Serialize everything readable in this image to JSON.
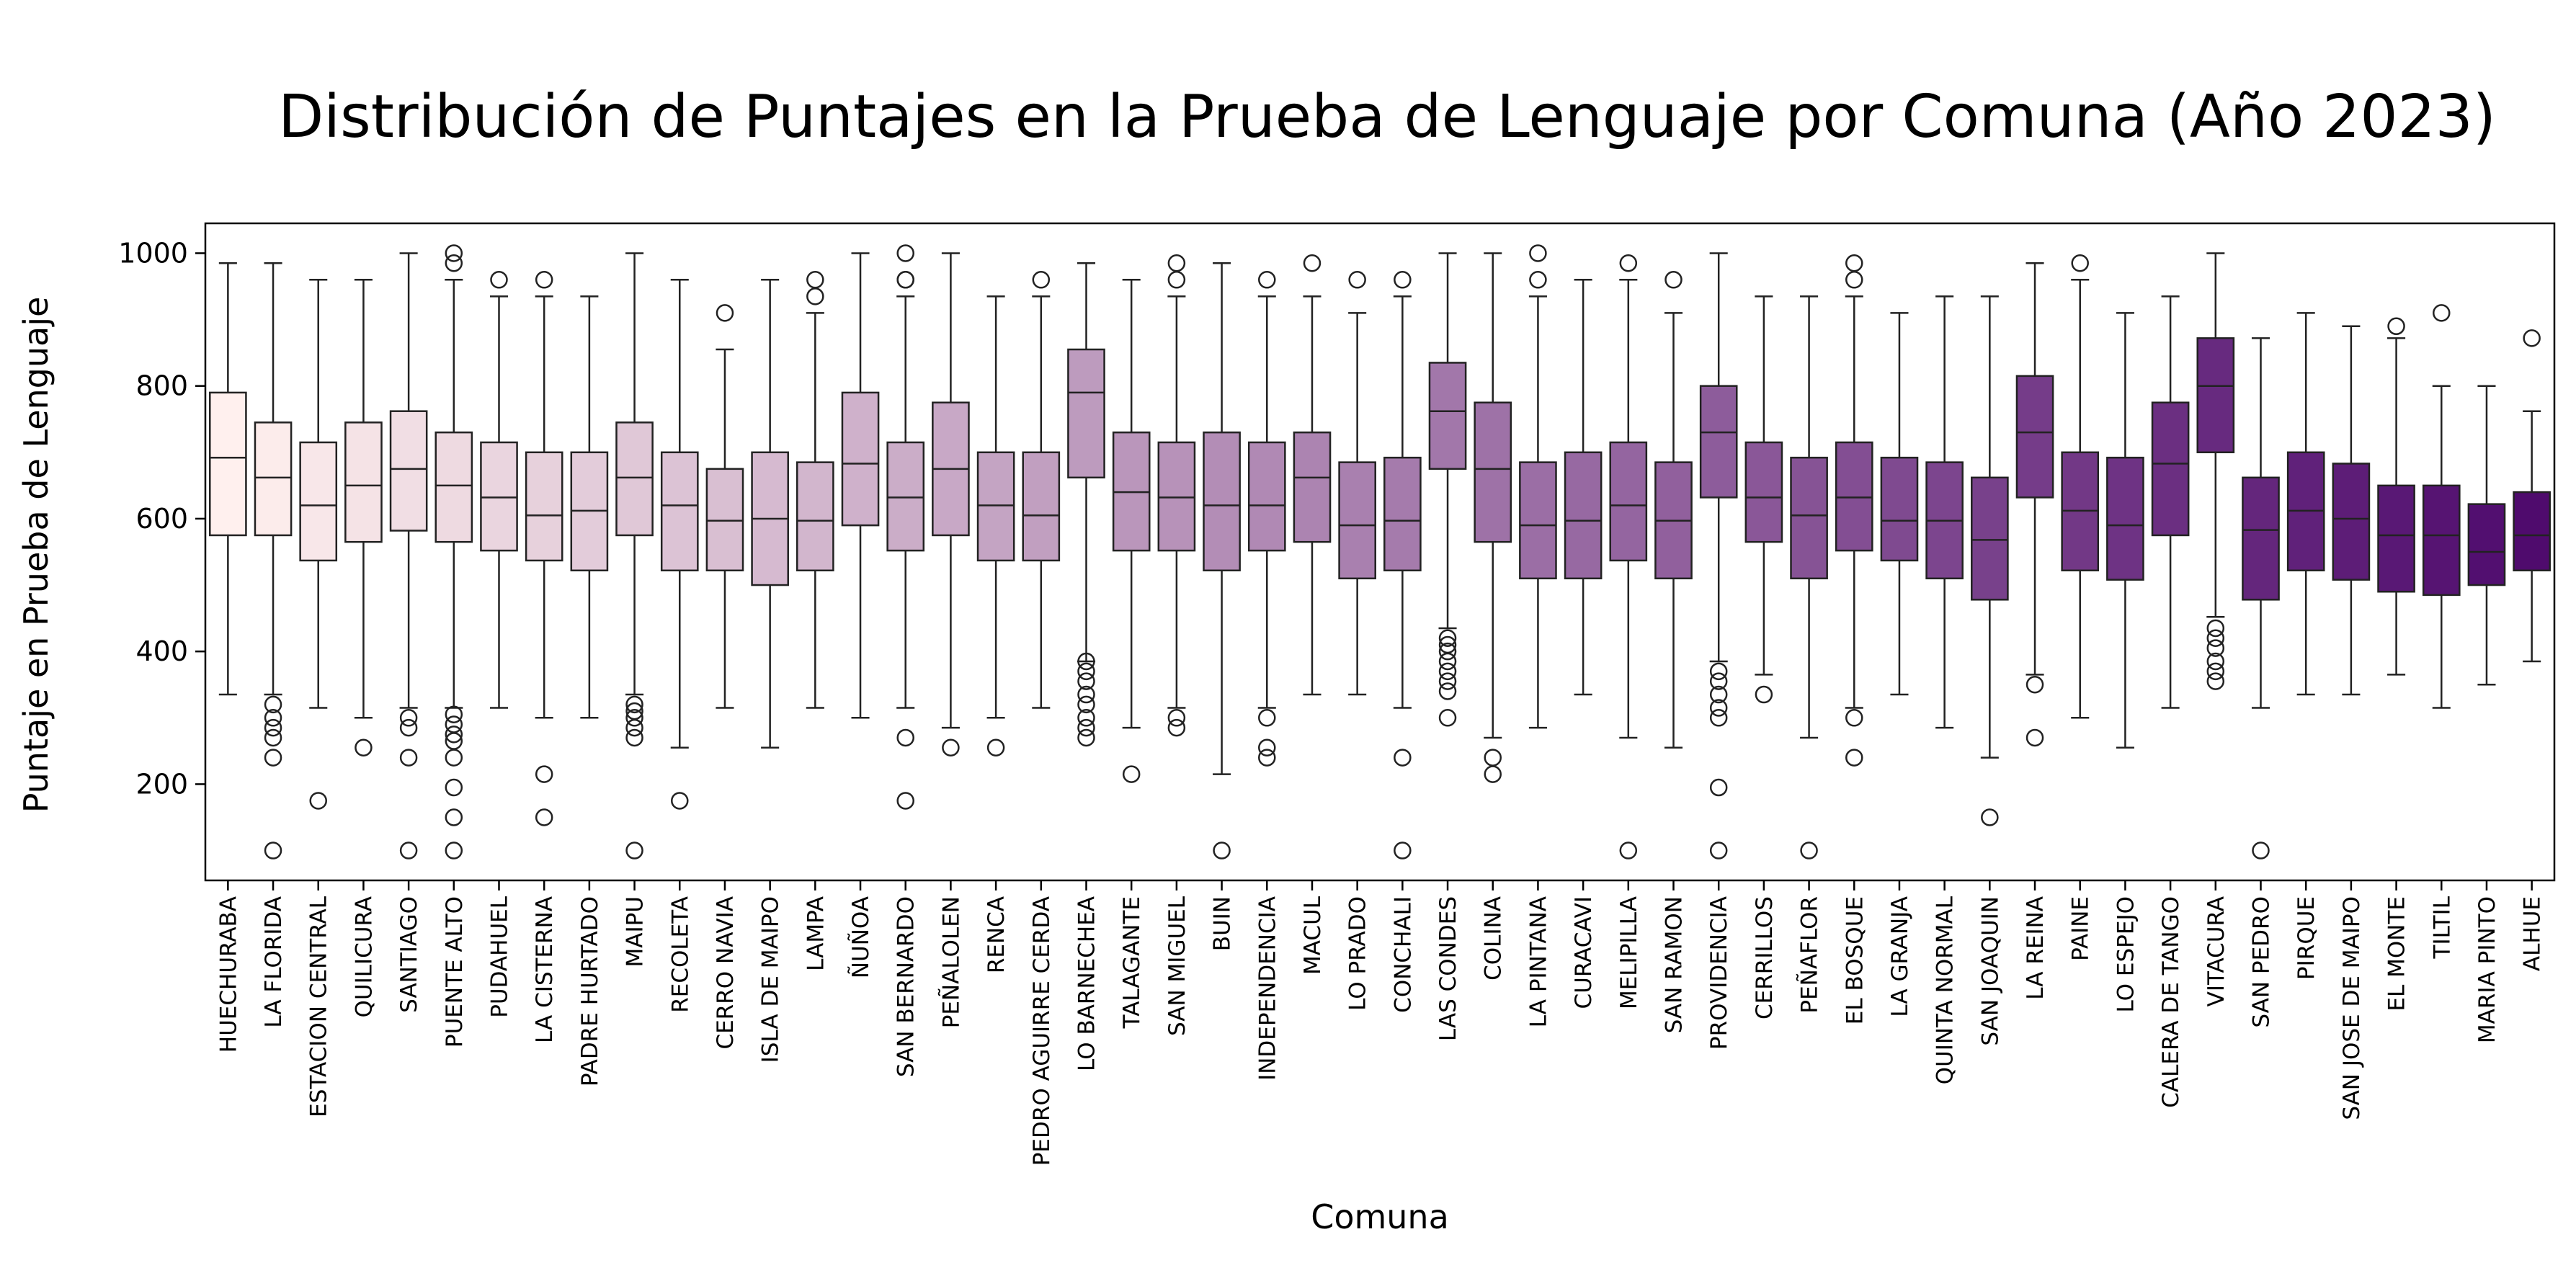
{
  "chart_data": {
    "type": "boxplot",
    "title": "Distribución de Puntajes en la Prueba de Lenguaje por Comuna (Año 2023)",
    "xlabel": "Comuna",
    "ylabel": "Puntaje en Prueba de Lenguaje",
    "ylim": [
      55,
      1045
    ],
    "yticks": [
      200,
      400,
      600,
      800,
      1000
    ],
    "grid": false,
    "legend": "none",
    "palette": "RdPu",
    "color_start": "#fff0ee",
    "color_end": "#4f0b6d",
    "categories": [
      "HUECHURABA",
      "LA FLORIDA",
      "ESTACION CENTRAL",
      "QUILICURA",
      "SANTIAGO",
      "PUENTE ALTO",
      "PUDAHUEL",
      "LA CISTERNA",
      "PADRE HURTADO",
      "MAIPU",
      "RECOLETA",
      "CERRO NAVIA",
      "ISLA DE MAIPO",
      "LAMPA",
      "ÑUÑOA",
      "SAN BERNARDO",
      "PEÑALOLEN",
      "RENCA",
      "PEDRO AGUIRRE CERDA",
      "LO BARNECHEA",
      "TALAGANTE",
      "SAN MIGUEL",
      "BUIN",
      "INDEPENDENCIA",
      "MACUL",
      "LO PRADO",
      "CONCHALI",
      "LAS CONDES",
      "COLINA",
      "LA PINTANA",
      "CURACAVI",
      "MELIPILLA",
      "SAN RAMON",
      "PROVIDENCIA",
      "CERRILLOS",
      "PEÑAFLOR",
      "EL BOSQUE",
      "LA GRANJA",
      "QUINTA NORMAL",
      "SAN JOAQUIN",
      "LA REINA",
      "PAINE",
      "LO ESPEJO",
      "CALERA DE TANGO",
      "VITACURA",
      "SAN PEDRO",
      "PIRQUE",
      "SAN JOSE DE MAIPO",
      "EL MONTE",
      "TILTIL",
      "MARIA PINTO",
      "ALHUE"
    ],
    "boxes": [
      {
        "whislo": 335,
        "q1": 575,
        "med": 692,
        "q3": 790,
        "whishi": 985,
        "fliers": []
      },
      {
        "whislo": 335,
        "q1": 575,
        "med": 662,
        "q3": 745,
        "whishi": 985,
        "fliers": [
          320,
          300,
          285,
          270,
          240,
          100
        ]
      },
      {
        "whislo": 315,
        "q1": 537,
        "med": 620,
        "q3": 715,
        "whishi": 960,
        "fliers": [
          175
        ]
      },
      {
        "whislo": 300,
        "q1": 565,
        "med": 650,
        "q3": 745,
        "whishi": 960,
        "fliers": [
          255
        ]
      },
      {
        "whislo": 315,
        "q1": 582,
        "med": 675,
        "q3": 762,
        "whishi": 1000,
        "fliers": [
          300,
          285,
          240,
          100
        ]
      },
      {
        "whislo": 315,
        "q1": 565,
        "med": 650,
        "q3": 730,
        "whishi": 960,
        "fliers": [
          1000,
          985,
          305,
          290,
          275,
          265,
          240,
          195,
          150,
          100
        ]
      },
      {
        "whislo": 315,
        "q1": 552,
        "med": 632,
        "q3": 715,
        "whishi": 935,
        "fliers": [
          960
        ]
      },
      {
        "whislo": 300,
        "q1": 537,
        "med": 605,
        "q3": 700,
        "whishi": 935,
        "fliers": [
          960,
          215,
          150
        ]
      },
      {
        "whislo": 300,
        "q1": 522,
        "med": 612,
        "q3": 700,
        "whishi": 935,
        "fliers": []
      },
      {
        "whislo": 335,
        "q1": 575,
        "med": 662,
        "q3": 745,
        "whishi": 1000,
        "fliers": [
          320,
          310,
          300,
          285,
          270,
          100
        ]
      },
      {
        "whislo": 255,
        "q1": 522,
        "med": 620,
        "q3": 700,
        "whishi": 960,
        "fliers": [
          175
        ]
      },
      {
        "whislo": 315,
        "q1": 522,
        "med": 597,
        "q3": 675,
        "whishi": 855,
        "fliers": [
          910
        ]
      },
      {
        "whislo": 255,
        "q1": 500,
        "med": 600,
        "q3": 700,
        "whishi": 960,
        "fliers": []
      },
      {
        "whislo": 315,
        "q1": 522,
        "med": 597,
        "q3": 685,
        "whishi": 910,
        "fliers": [
          960,
          935
        ]
      },
      {
        "whislo": 300,
        "q1": 590,
        "med": 683,
        "q3": 790,
        "whishi": 1000,
        "fliers": []
      },
      {
        "whislo": 315,
        "q1": 552,
        "med": 632,
        "q3": 715,
        "whishi": 935,
        "fliers": [
          1000,
          960,
          960,
          270,
          175
        ]
      },
      {
        "whislo": 285,
        "q1": 575,
        "med": 675,
        "q3": 775,
        "whishi": 1000,
        "fliers": [
          255
        ]
      },
      {
        "whislo": 300,
        "q1": 537,
        "med": 620,
        "q3": 700,
        "whishi": 935,
        "fliers": [
          255
        ]
      },
      {
        "whislo": 315,
        "q1": 537,
        "med": 605,
        "q3": 700,
        "whishi": 935,
        "fliers": [
          960
        ]
      },
      {
        "whislo": 385,
        "q1": 662,
        "med": 790,
        "q3": 855,
        "whishi": 985,
        "fliers": [
          385,
          370,
          355,
          335,
          320,
          300,
          285,
          270
        ]
      },
      {
        "whislo": 285,
        "q1": 552,
        "med": 640,
        "q3": 730,
        "whishi": 960,
        "fliers": [
          215
        ]
      },
      {
        "whislo": 315,
        "q1": 552,
        "med": 632,
        "q3": 715,
        "whishi": 935,
        "fliers": [
          985,
          960,
          300,
          285
        ]
      },
      {
        "whislo": 215,
        "q1": 522,
        "med": 620,
        "q3": 730,
        "whishi": 985,
        "fliers": [
          100
        ]
      },
      {
        "whislo": 315,
        "q1": 552,
        "med": 620,
        "q3": 715,
        "whishi": 935,
        "fliers": [
          960,
          300,
          255,
          240
        ]
      },
      {
        "whislo": 335,
        "q1": 565,
        "med": 662,
        "q3": 730,
        "whishi": 935,
        "fliers": [
          985
        ]
      },
      {
        "whislo": 335,
        "q1": 510,
        "med": 590,
        "q3": 685,
        "whishi": 910,
        "fliers": [
          960
        ]
      },
      {
        "whislo": 315,
        "q1": 522,
        "med": 597,
        "q3": 692,
        "whishi": 935,
        "fliers": [
          960,
          240,
          100
        ]
      },
      {
        "whislo": 435,
        "q1": 675,
        "med": 762,
        "q3": 835,
        "whishi": 1000,
        "fliers": [
          420,
          410,
          400,
          385,
          370,
          355,
          340,
          300
        ]
      },
      {
        "whislo": 270,
        "q1": 565,
        "med": 675,
        "q3": 775,
        "whishi": 1000,
        "fliers": [
          240,
          215
        ]
      },
      {
        "whislo": 285,
        "q1": 510,
        "med": 590,
        "q3": 685,
        "whishi": 935,
        "fliers": [
          1000,
          960
        ]
      },
      {
        "whislo": 335,
        "q1": 510,
        "med": 597,
        "q3": 700,
        "whishi": 960,
        "fliers": []
      },
      {
        "whislo": 270,
        "q1": 537,
        "med": 620,
        "q3": 715,
        "whishi": 960,
        "fliers": [
          985,
          100
        ]
      },
      {
        "whislo": 255,
        "q1": 510,
        "med": 597,
        "q3": 685,
        "whishi": 910,
        "fliers": [
          960
        ]
      },
      {
        "whislo": 385,
        "q1": 632,
        "med": 730,
        "q3": 800,
        "whishi": 1000,
        "fliers": [
          370,
          355,
          335,
          315,
          300,
          195,
          100
        ]
      },
      {
        "whislo": 365,
        "q1": 565,
        "med": 632,
        "q3": 715,
        "whishi": 935,
        "fliers": [
          335
        ]
      },
      {
        "whislo": 270,
        "q1": 510,
        "med": 605,
        "q3": 692,
        "whishi": 935,
        "fliers": [
          100
        ]
      },
      {
        "whislo": 315,
        "q1": 552,
        "med": 632,
        "q3": 715,
        "whishi": 935,
        "fliers": [
          985,
          960,
          300,
          240
        ]
      },
      {
        "whislo": 335,
        "q1": 537,
        "med": 597,
        "q3": 692,
        "whishi": 910,
        "fliers": []
      },
      {
        "whislo": 285,
        "q1": 510,
        "med": 597,
        "q3": 685,
        "whishi": 935,
        "fliers": []
      },
      {
        "whislo": 240,
        "q1": 478,
        "med": 568,
        "q3": 662,
        "whishi": 935,
        "fliers": [
          150
        ]
      },
      {
        "whislo": 365,
        "q1": 632,
        "med": 730,
        "q3": 815,
        "whishi": 985,
        "fliers": [
          350,
          270
        ]
      },
      {
        "whislo": 300,
        "q1": 522,
        "med": 612,
        "q3": 700,
        "whishi": 960,
        "fliers": [
          985
        ]
      },
      {
        "whislo": 255,
        "q1": 508,
        "med": 590,
        "q3": 692,
        "whishi": 910,
        "fliers": []
      },
      {
        "whislo": 315,
        "q1": 575,
        "med": 683,
        "q3": 775,
        "whishi": 935,
        "fliers": []
      },
      {
        "whislo": 452,
        "q1": 700,
        "med": 800,
        "q3": 872,
        "whishi": 1000,
        "fliers": [
          435,
          420,
          405,
          385,
          370,
          355
        ]
      },
      {
        "whislo": 315,
        "q1": 478,
        "med": 583,
        "q3": 662,
        "whishi": 872,
        "fliers": [
          100
        ]
      },
      {
        "whislo": 335,
        "q1": 522,
        "med": 612,
        "q3": 700,
        "whishi": 910,
        "fliers": []
      },
      {
        "whislo": 335,
        "q1": 508,
        "med": 600,
        "q3": 683,
        "whishi": 890,
        "fliers": []
      },
      {
        "whislo": 365,
        "q1": 490,
        "med": 575,
        "q3": 650,
        "whishi": 872,
        "fliers": [
          890
        ]
      },
      {
        "whislo": 315,
        "q1": 485,
        "med": 575,
        "q3": 650,
        "whishi": 800,
        "fliers": [
          910
        ]
      },
      {
        "whislo": 350,
        "q1": 500,
        "med": 550,
        "q3": 622,
        "whishi": 800,
        "fliers": []
      },
      {
        "whislo": 385,
        "q1": 522,
        "med": 575,
        "q3": 640,
        "whishi": 762,
        "fliers": [
          872
        ]
      }
    ]
  }
}
